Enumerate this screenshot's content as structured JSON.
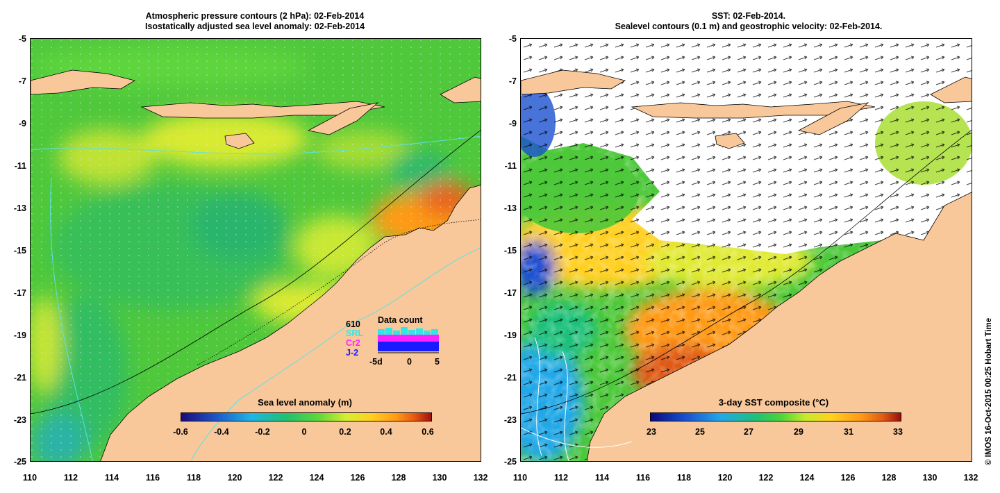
{
  "left_panel": {
    "title_line1": "Atmospheric pressure contours (2 hPa): 02-Feb-2014",
    "title_line2": "Isostatically adjusted sea level anomaly: 02-Feb-2014",
    "colorbar_title": "Sea level anomaly (m)",
    "colorbar_ticks": [
      "-0.6",
      "-0.4",
      "-0.2",
      "0",
      "0.2",
      "0.4",
      "0.6"
    ],
    "data_count": {
      "title": "Data count",
      "total": "610",
      "missions": [
        {
          "name": "SRL",
          "color": "#33e5e5"
        },
        {
          "name": "Cr2",
          "color": "#ff22ff"
        },
        {
          "name": "J-2",
          "color": "#1a1aff"
        }
      ],
      "axis_ticks": [
        "-5d",
        "0",
        "5"
      ]
    }
  },
  "right_panel": {
    "title_line1": "SST: 02-Feb-2014.",
    "title_line2": "Sealevel contours (0.1 m) and geostrophic velocity: 02-Feb-2014.",
    "colorbar_title": "3-day SST composite (°C)",
    "colorbar_ticks": [
      "23",
      "25",
      "27",
      "29",
      "31",
      "33"
    ]
  },
  "lat_ticks": [
    "-5",
    "-7",
    "-9",
    "-11",
    "-13",
    "-15",
    "-17",
    "-19",
    "-21",
    "-23",
    "-25"
  ],
  "lon_ticks": [
    "110",
    "112",
    "114",
    "116",
    "118",
    "120",
    "122",
    "124",
    "126",
    "128",
    "130",
    "132"
  ],
  "credit": "© IMOS 16-Oct-2015 00:25 Hobart Time",
  "colors": {
    "land": "#f9c89a",
    "sla_scale": [
      "#1a0a7a",
      "#1e56c8",
      "#1eb4e6",
      "#22c070",
      "#5fd83a",
      "#d6ee30",
      "#ffd020",
      "#ff9a16",
      "#e85a10",
      "#a01010"
    ],
    "sst_scale": [
      "#0a0a7a",
      "#1a50d0",
      "#22a8e8",
      "#1ec07a",
      "#4cd43a",
      "#c8ea2e",
      "#ffd21e",
      "#ff9a18",
      "#e05a12",
      "#9a1010"
    ]
  }
}
